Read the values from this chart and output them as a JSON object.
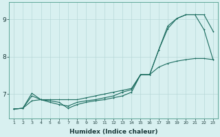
{
  "xlabel": "Humidex (Indice chaleur)",
  "x": [
    1,
    2,
    3,
    4,
    5,
    6,
    7,
    8,
    9,
    10,
    11,
    12,
    13,
    14,
    15,
    16,
    17,
    18,
    19,
    20,
    21,
    22,
    23
  ],
  "line1": [
    6.6,
    6.62,
    6.95,
    6.85,
    6.82,
    6.78,
    6.62,
    6.72,
    6.78,
    6.82,
    6.85,
    6.9,
    6.95,
    7.05,
    7.52,
    7.52,
    8.18,
    8.75,
    9.02,
    9.12,
    9.12,
    8.72,
    7.92
  ],
  "line2": [
    6.6,
    6.62,
    7.02,
    6.85,
    6.78,
    6.72,
    6.68,
    6.78,
    6.82,
    6.85,
    6.9,
    6.95,
    7.05,
    7.12,
    7.52,
    7.52,
    8.18,
    8.82,
    9.02,
    9.12,
    9.12,
    9.12,
    8.68
  ],
  "line3": [
    6.6,
    6.62,
    6.82,
    6.85,
    6.85,
    6.85,
    6.85,
    6.85,
    6.9,
    6.95,
    7.0,
    7.05,
    7.1,
    7.15,
    7.52,
    7.52,
    7.72,
    7.82,
    7.88,
    7.92,
    7.95,
    7.95,
    7.92
  ],
  "line_color": "#1a6b5e",
  "bg_color": "#d8f0f0",
  "grid_color": "#b8d8d8",
  "yticks": [
    7,
    8,
    9
  ],
  "ylim": [
    6.35,
    9.45
  ],
  "xlim": [
    0.5,
    23.5
  ]
}
